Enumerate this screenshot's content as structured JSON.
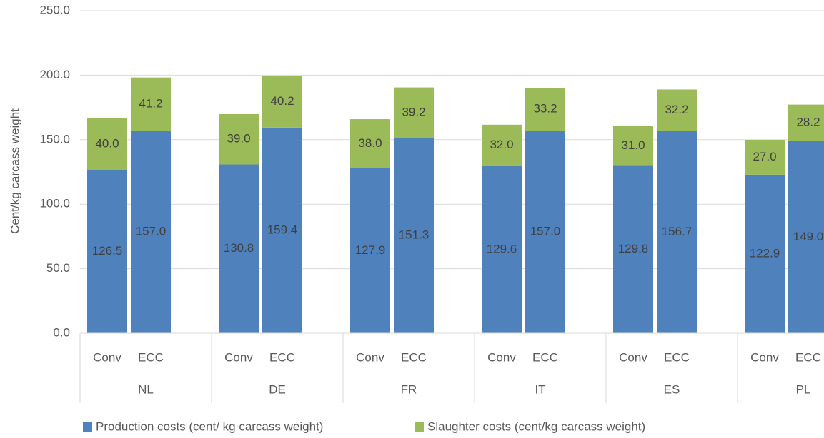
{
  "chart_data": {
    "type": "stacked_bar",
    "y_label": "Cent/kg carcass weight",
    "groups": [
      "NL",
      "DE",
      "FR",
      "IT",
      "ES",
      "PL"
    ],
    "categories": [
      "Conv",
      "ECC",
      "Conv",
      "ECC",
      "Conv",
      "ECC",
      "Conv",
      "ECC",
      "Conv",
      "ECC",
      "Conv",
      "ECC"
    ],
    "series": [
      {
        "name": "Production costs (cent/ kg carcass weight)",
        "color": "#4f81bd",
        "values": [
          126.5,
          157.0,
          130.8,
          159.4,
          127.9,
          151.3,
          129.6,
          157.0,
          129.8,
          156.7,
          122.9,
          149.0
        ],
        "value_labels": [
          "126.5",
          "157.0",
          "130.8",
          "159.4",
          "127.9",
          "151.3",
          "129.6",
          "157.0",
          "129.8",
          "156.7",
          "122.9",
          "149.0"
        ]
      },
      {
        "name": "Slaughter costs (cent/kg carcass weight)",
        "color": "#9bbb59",
        "values": [
          40.0,
          41.2,
          39.0,
          40.2,
          38.0,
          39.2,
          32.0,
          33.2,
          31.0,
          32.2,
          27.0,
          28.2
        ],
        "value_labels": [
          "40.0",
          "41.2",
          "39.0",
          "40.2",
          "38.0",
          "39.2",
          "32.0",
          "33.2",
          "31.0",
          "32.2",
          "27.0",
          "28.2"
        ]
      }
    ],
    "ylim": [
      0,
      250
    ],
    "yticks": [
      {
        "value": 0,
        "label": "0.0"
      },
      {
        "value": 50,
        "label": "50.0"
      },
      {
        "value": 100,
        "label": "100.0"
      },
      {
        "value": 150,
        "label": "150.0"
      },
      {
        "value": 200,
        "label": "200.0"
      },
      {
        "value": 250,
        "label": "250.0"
      }
    ],
    "grid": true,
    "legend": "bottom"
  }
}
